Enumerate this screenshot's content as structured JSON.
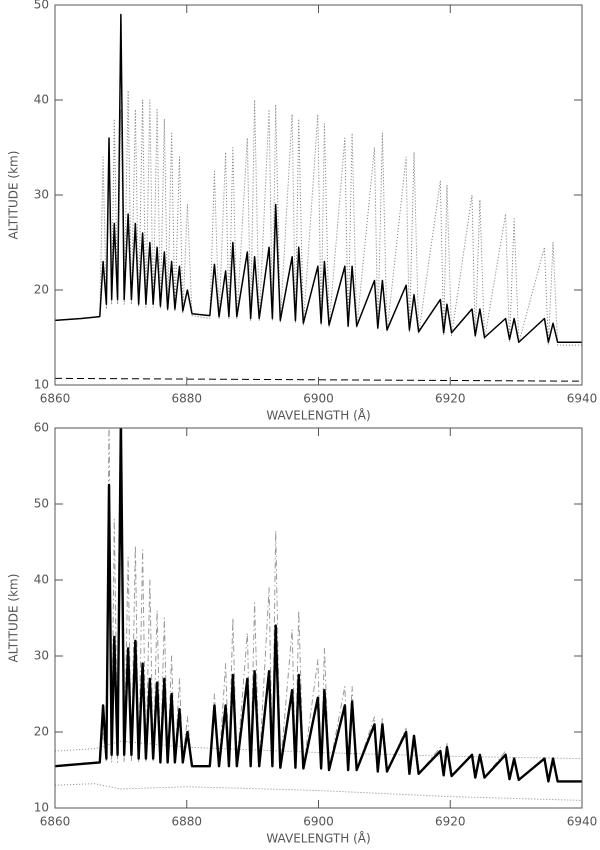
{
  "chart_data": [
    {
      "type": "line",
      "xlabel": "WAVELENGTH (Å)",
      "ylabel": "ALTITUDE (km)",
      "xlim": [
        6860,
        6940
      ],
      "xticks": [
        6860,
        6880,
        6900,
        6920,
        6940
      ],
      "ylim": [
        10,
        50
      ],
      "yticks": [
        10,
        20,
        30,
        40,
        50
      ],
      "series": [
        {
          "color": "#888888",
          "linestyle": "dotted",
          "x": [
            6860,
            6864,
            6866.8,
            6867.3,
            6867.8,
            6868.2,
            6868.6,
            6869.0,
            6869.5,
            6870.0,
            6870.5,
            6871.1,
            6871.6,
            6872.2,
            6872.7,
            6873.3,
            6873.8,
            6874.4,
            6874.9,
            6875.5,
            6876.0,
            6876.6,
            6877.1,
            6877.7,
            6878.2,
            6878.9,
            6879.4,
            6880.1,
            6880.8,
            6883.5,
            6884.2,
            6884.9,
            6885.9,
            6886.4,
            6887.0,
            6887.6,
            6889.2,
            6889.7,
            6890.3,
            6891.0,
            6892.5,
            6893.0,
            6893.5,
            6894.2,
            6896.0,
            6896.5,
            6897.0,
            6897.7,
            6899.9,
            6900.4,
            6900.9,
            6901.6,
            6904.0,
            6904.5,
            6905.1,
            6905.8,
            6908.5,
            6909.0,
            6909.7,
            6910.4,
            6913.3,
            6913.8,
            6914.5,
            6915.2,
            6918.5,
            6919.0,
            6919.5,
            6920.2,
            6923.3,
            6923.8,
            6924.5,
            6925.2,
            6928.4,
            6929.0,
            6929.7,
            6930.4,
            6934.3,
            6934.9,
            6935.6,
            6936.3,
            6940
          ],
          "values": [
            16.8,
            17.0,
            17.2,
            34,
            18,
            35,
            18.5,
            38,
            18.5,
            39,
            18.5,
            41,
            18.5,
            39,
            18.3,
            40,
            18.2,
            40,
            18.2,
            39,
            18,
            38,
            17.8,
            36.5,
            17.7,
            34,
            17.5,
            29,
            17.3,
            17,
            32.5,
            17,
            34.5,
            17,
            35,
            17,
            36,
            16.8,
            40,
            16.8,
            39,
            16.8,
            39.5,
            16.6,
            38.5,
            16.5,
            38,
            16.3,
            38.5,
            16.3,
            37.5,
            16.1,
            36,
            16,
            36.5,
            16,
            35,
            15.8,
            36.5,
            15.6,
            34,
            15.5,
            34.5,
            15.4,
            31.5,
            15.3,
            31,
            15.2,
            30,
            15,
            29.5,
            14.8,
            28,
            14.6,
            27.5,
            14.4,
            24.5,
            14.3,
            25,
            14.2,
            14.2
          ]
        },
        {
          "color": "#000000",
          "linestyle": "solid",
          "x": [
            6860,
            6864,
            6866.8,
            6867.3,
            6867.8,
            6868.2,
            6868.6,
            6869.0,
            6869.5,
            6870.0,
            6870.5,
            6871.1,
            6871.6,
            6872.2,
            6872.7,
            6873.3,
            6873.8,
            6874.4,
            6874.9,
            6875.5,
            6876.0,
            6876.6,
            6877.1,
            6877.7,
            6878.2,
            6878.9,
            6879.4,
            6880.1,
            6880.8,
            6883.5,
            6884.2,
            6884.9,
            6885.9,
            6886.4,
            6887.0,
            6887.6,
            6889.2,
            6889.7,
            6890.3,
            6891.0,
            6892.5,
            6893.0,
            6893.5,
            6894.2,
            6896.0,
            6896.5,
            6897.0,
            6897.7,
            6899.9,
            6900.4,
            6900.9,
            6901.6,
            6904.0,
            6904.5,
            6905.1,
            6905.8,
            6908.5,
            6909.0,
            6909.7,
            6910.4,
            6913.3,
            6913.8,
            6914.5,
            6915.2,
            6918.5,
            6919.0,
            6919.5,
            6920.2,
            6923.3,
            6923.8,
            6924.5,
            6925.2,
            6928.4,
            6929.0,
            6929.7,
            6930.4,
            6934.3,
            6934.9,
            6935.6,
            6936.3,
            6940
          ],
          "values": [
            16.8,
            17.0,
            17.2,
            23,
            18.5,
            36,
            19,
            27,
            19,
            49,
            19,
            28,
            19,
            27,
            18.5,
            26,
            18.5,
            25,
            18.5,
            24.5,
            18.3,
            24,
            18,
            23,
            18,
            22.5,
            17.8,
            20,
            17.5,
            17.3,
            22.7,
            17.2,
            22,
            17.2,
            25,
            17.2,
            24,
            17,
            23.5,
            17,
            24.5,
            17,
            29,
            16.8,
            23.5,
            16.8,
            24.5,
            16.5,
            22.5,
            16.5,
            23,
            16.3,
            22.5,
            16.2,
            22.5,
            16.2,
            21,
            16,
            21,
            15.8,
            20.5,
            15.8,
            19.5,
            15.6,
            19,
            15.5,
            18.5,
            15.5,
            18,
            15.2,
            18,
            15,
            17,
            14.8,
            17,
            14.5,
            17,
            14.5,
            16.5,
            14.5,
            14.5
          ]
        },
        {
          "color": "#000000",
          "linestyle": "dashed",
          "x": [
            6860,
            6940
          ],
          "values": [
            10.7,
            10.4
          ]
        }
      ]
    },
    {
      "type": "line",
      "xlabel": "WAVELENGTH (Å)",
      "ylabel": "ALTITUDE (km)",
      "xlim": [
        6860,
        6940
      ],
      "xticks": [
        6860,
        6880,
        6900,
        6920,
        6940
      ],
      "ylim": [
        10,
        60
      ],
      "yticks": [
        10,
        20,
        30,
        40,
        50,
        60
      ],
      "series": [
        {
          "color": "#999999",
          "linestyle": "dotted",
          "x": [
            6860,
            6866,
            6870,
            6880,
            6900,
            6920,
            6940
          ],
          "values": [
            17.5,
            17.8,
            18.8,
            18,
            17.3,
            16.8,
            16.5
          ]
        },
        {
          "color": "#999999",
          "linestyle": "dotted",
          "x": [
            6860,
            6866,
            6870,
            6880,
            6900,
            6920,
            6940
          ],
          "values": [
            13,
            13.2,
            12.5,
            12.8,
            12.3,
            11.5,
            11
          ]
        },
        {
          "color": "#999999",
          "linestyle": "dashdot",
          "x": [
            6860,
            6864,
            6866.8,
            6867.3,
            6867.8,
            6868.2,
            6868.6,
            6869.0,
            6869.5,
            6870.0,
            6870.5,
            6871.1,
            6871.6,
            6872.2,
            6872.7,
            6873.3,
            6873.8,
            6874.4,
            6874.9,
            6875.5,
            6876.0,
            6876.6,
            6877.1,
            6877.7,
            6878.2,
            6878.9,
            6879.4,
            6880.1,
            6880.8,
            6883.5,
            6884.2,
            6884.9,
            6885.9,
            6886.4,
            6887.0,
            6887.6,
            6889.2,
            6889.7,
            6890.3,
            6891.0,
            6892.5,
            6893.0,
            6893.5,
            6894.2,
            6896.0,
            6896.5,
            6897.0,
            6897.7,
            6899.9,
            6900.4,
            6900.9,
            6901.6,
            6904.0,
            6904.5,
            6905.1,
            6905.8,
            6908.5,
            6909.0,
            6909.7,
            6910.4,
            6913.3,
            6913.8,
            6914.5,
            6915.2,
            6918.5,
            6919.0,
            6919.5,
            6920.2,
            6923.3,
            6923.8,
            6924.5,
            6925.2,
            6928.4,
            6929.0,
            6929.7,
            6930.4,
            6934.3,
            6934.9,
            6935.6,
            6936.3,
            6940
          ],
          "values": [
            15.5,
            15.8,
            16,
            20,
            16,
            62,
            16,
            48,
            16,
            62,
            16,
            43,
            16,
            44.5,
            16,
            44,
            16,
            40,
            16,
            36,
            16,
            35,
            16,
            30,
            16,
            27,
            16,
            22,
            15.5,
            15.5,
            25,
            15.5,
            29,
            15.5,
            35,
            15.5,
            33,
            15.5,
            37,
            15.5,
            39,
            15.5,
            46.5,
            15.3,
            33.5,
            15.3,
            36,
            15.2,
            29.5,
            15.2,
            31,
            15,
            26,
            15,
            26,
            15,
            22,
            14.8,
            22,
            14.8,
            20.5,
            14.5,
            19.5,
            14.5,
            18,
            14.3,
            18.5,
            14.2,
            17,
            14,
            17,
            14,
            17.5,
            13.8,
            16,
            13.7,
            16.5,
            13.5,
            16,
            13.5,
            13.5
          ]
        },
        {
          "color": "#000000",
          "linestyle": "solid",
          "x": [
            6860,
            6864,
            6866.8,
            6867.3,
            6867.8,
            6868.2,
            6868.6,
            6869.0,
            6869.5,
            6870.0,
            6870.5,
            6871.1,
            6871.6,
            6872.2,
            6872.7,
            6873.3,
            6873.8,
            6874.4,
            6874.9,
            6875.5,
            6876.0,
            6876.6,
            6877.1,
            6877.7,
            6878.2,
            6878.9,
            6879.4,
            6880.1,
            6880.8,
            6883.5,
            6884.2,
            6884.9,
            6885.9,
            6886.4,
            6887.0,
            6887.6,
            6889.2,
            6889.7,
            6890.3,
            6891.0,
            6892.5,
            6893.0,
            6893.5,
            6894.2,
            6896.0,
            6896.5,
            6897.0,
            6897.7,
            6899.9,
            6900.4,
            6900.9,
            6901.6,
            6904.0,
            6904.5,
            6905.1,
            6905.8,
            6908.5,
            6909.0,
            6909.7,
            6910.4,
            6913.3,
            6913.8,
            6914.5,
            6915.2,
            6918.5,
            6919.0,
            6919.5,
            6920.2,
            6923.3,
            6923.8,
            6924.5,
            6925.2,
            6928.4,
            6929.0,
            6929.7,
            6930.4,
            6934.3,
            6934.9,
            6935.6,
            6936.3,
            6940
          ],
          "values": [
            15.5,
            15.8,
            16,
            23.5,
            16.5,
            52.5,
            17,
            32.5,
            17,
            61,
            17,
            31,
            17,
            32,
            16.5,
            29,
            16.5,
            27,
            16.5,
            26.5,
            16,
            27,
            16,
            25,
            16,
            23,
            16,
            20,
            15.5,
            15.5,
            23.5,
            15.5,
            23.5,
            15.5,
            27.5,
            15.5,
            27,
            15.5,
            28,
            15.5,
            28,
            15.5,
            34,
            15.3,
            25.5,
            15.3,
            27.5,
            15.2,
            24.5,
            15.2,
            25.5,
            15,
            23.5,
            15,
            24,
            15,
            21,
            14.8,
            21,
            14.8,
            20,
            14.5,
            19.5,
            14.5,
            17.5,
            14.3,
            18,
            14.2,
            17,
            14,
            17,
            14,
            17,
            13.8,
            16.5,
            13.7,
            16.5,
            13.5,
            16.5,
            13.5,
            13.5
          ]
        }
      ]
    }
  ]
}
